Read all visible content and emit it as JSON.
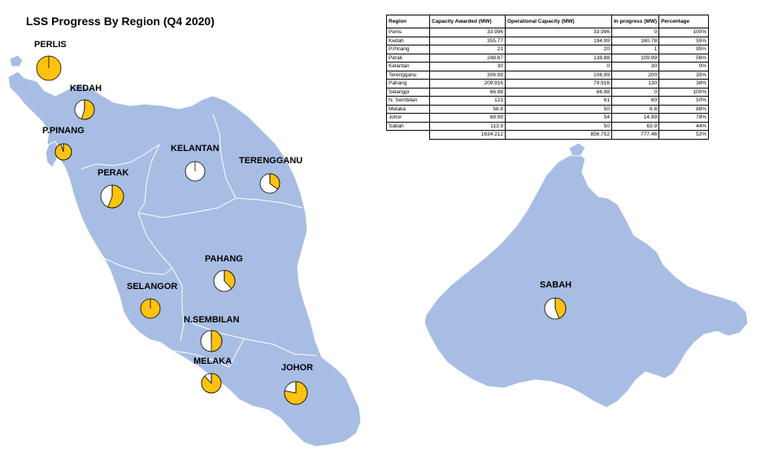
{
  "title": "LSS Progress By Region (Q4 2020)",
  "colors": {
    "land": "#a7bde3",
    "land_stroke": "#ffffff",
    "operational": "#ffc20e",
    "remaining": "#ffffff"
  },
  "table": {
    "headers": [
      "Region",
      "Capacity Awarded (MW)",
      "Operational Capacity (MW)",
      "In progress (MW)",
      "Percentage"
    ],
    "rows": [
      [
        "Perlis",
        "33.996",
        "33.996",
        "0",
        "100%"
      ],
      [
        "Kedah",
        "355.77",
        "194.99",
        "160.78",
        "55%"
      ],
      [
        "P.Pinang",
        "21",
        "20",
        "1",
        "95%"
      ],
      [
        "Perak",
        "248.87",
        "138.88",
        "109.99",
        "56%"
      ],
      [
        "Kelantan",
        "30",
        "0",
        "30",
        "0%"
      ],
      [
        "Terengganu",
        "306.99",
        "106.99",
        "200",
        "35%"
      ],
      [
        "Pahang",
        "209.916",
        "79.916",
        "130",
        "38%"
      ],
      [
        "Selangpr",
        "66.98",
        "66.98",
        "0",
        "100%"
      ],
      [
        "N. Sembilan",
        "121",
        "61",
        "60",
        "50%"
      ],
      [
        "Melaka",
        "56.8",
        "50",
        "6.8",
        "88%"
      ],
      [
        "Johor",
        "68.99",
        "54",
        "14.99",
        "78%"
      ],
      [
        "Sabah",
        "113.9",
        "50",
        "63.9",
        "44%"
      ]
    ],
    "total": [
      "1634.212",
      "856.752",
      "777.46",
      "52%"
    ]
  },
  "regions": [
    {
      "label": "PERLIS",
      "pct": 1.0
    },
    {
      "label": "KEDAH",
      "pct": 0.55
    },
    {
      "label": "P.PINANG",
      "pct": 0.95
    },
    {
      "label": "PERAK",
      "pct": 0.56
    },
    {
      "label": "KELANTAN",
      "pct": 0.0
    },
    {
      "label": "TERENGGANU",
      "pct": 0.35
    },
    {
      "label": "PAHANG",
      "pct": 0.38
    },
    {
      "label": "SELANGOR",
      "pct": 1.0
    },
    {
      "label": "N.SEMBILAN",
      "pct": 0.5
    },
    {
      "label": "MELAKA",
      "pct": 0.88
    },
    {
      "label": "JOHOR",
      "pct": 0.78
    },
    {
      "label": "SABAH",
      "pct": 0.44
    }
  ]
}
